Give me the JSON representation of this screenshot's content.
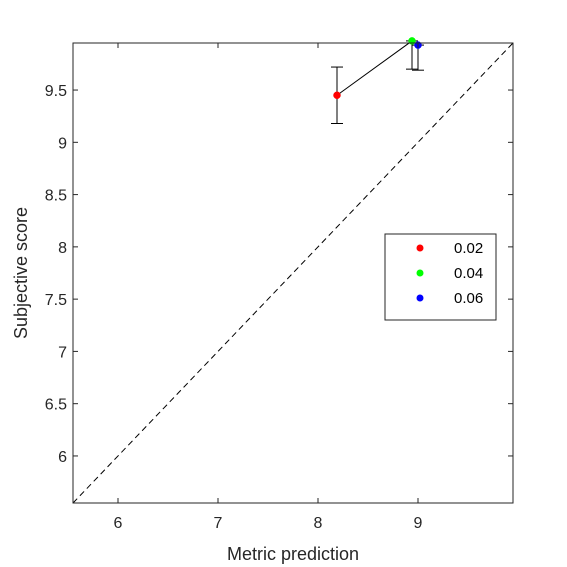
{
  "chart_data": {
    "type": "scatter",
    "title": "",
    "xlabel": "Metric prediction",
    "ylabel": "Subjective score",
    "xlim": [
      5.55,
      9.95
    ],
    "ylim": [
      5.55,
      9.95
    ],
    "xticks": [
      6,
      7,
      8,
      9
    ],
    "yticks": [
      6,
      6.5,
      7,
      7.5,
      8,
      8.5,
      9,
      9.5
    ],
    "xtick_labels": [
      "6",
      "7",
      "8",
      "9"
    ],
    "ytick_labels": [
      "6",
      "6.5",
      "7",
      "7.5",
      "8",
      "8.5",
      "9",
      "9.5"
    ],
    "grid": false,
    "box": true,
    "reference_line": {
      "style": "dashed",
      "color": "#000000",
      "description": "identity y = x"
    },
    "connecting_line": {
      "color": "#000000"
    },
    "legend_position": "right",
    "series": [
      {
        "name": "0.02",
        "color": "#ff0000",
        "x": 8.19,
        "y": 9.45,
        "err_low": 9.18,
        "err_high": 9.72
      },
      {
        "name": "0.04",
        "color": "#00ff00",
        "x": 8.94,
        "y": 9.97,
        "err_low": 9.7,
        "err_high": 9.97
      },
      {
        "name": "0.06",
        "color": "#0000ff",
        "x": 9.0,
        "y": 9.93,
        "err_low": 9.69,
        "err_high": 9.93
      }
    ]
  }
}
